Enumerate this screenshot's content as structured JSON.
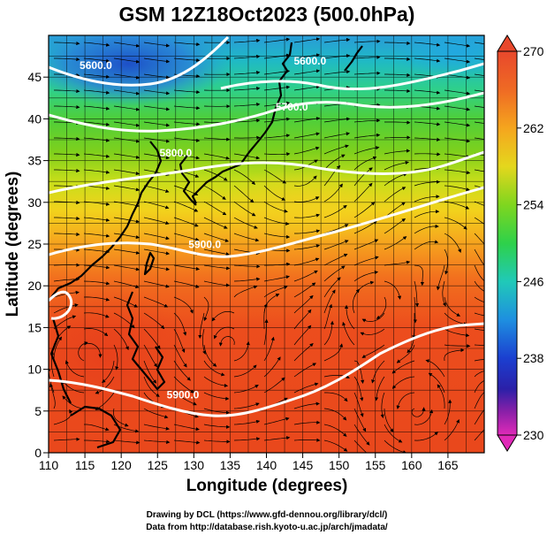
{
  "title": "GSM 12Z18Oct2023 (500.0hPa)",
  "xlabel": "Longitude (degrees)",
  "ylabel": "Latitude  (degrees)",
  "x_ticks": [
    "110",
    "115",
    "120",
    "125",
    "130",
    "135",
    "140",
    "145",
    "150",
    "155",
    "160",
    "165"
  ],
  "y_ticks": [
    "0",
    "5",
    "10",
    "15",
    "20",
    "25",
    "30",
    "35",
    "40",
    "45"
  ],
  "colorbar": {
    "ticks": [
      "270",
      "262",
      "254",
      "246",
      "238",
      "230"
    ],
    "range": [
      230,
      270
    ]
  },
  "contour_labels": [
    {
      "text": "5600.0",
      "lon": 116.5,
      "lat": 46
    },
    {
      "text": "5600.0",
      "lon": 146,
      "lat": 46.5
    },
    {
      "text": "5700.0",
      "lon": 143.5,
      "lat": 41
    },
    {
      "text": "5800.0",
      "lon": 127.5,
      "lat": 35.5
    },
    {
      "text": "5900.0",
      "lon": 131.5,
      "lat": 24.5
    },
    {
      "text": "5900.0",
      "lon": 128.5,
      "lat": 6.5
    }
  ],
  "credits": {
    "line1": "Drawing by DCL (https://www.gfd-dennou.org/library/dcl/)",
    "line2": "Data from http://database.rish.kyoto-u.ac.jp/arch/jmadata/"
  },
  "map": {
    "x_range": [
      110,
      170
    ],
    "y_range": [
      0,
      50
    ],
    "grid_step_deg": 2.5,
    "contour_color": "#ffffff",
    "coastline_color": "#000000"
  }
}
